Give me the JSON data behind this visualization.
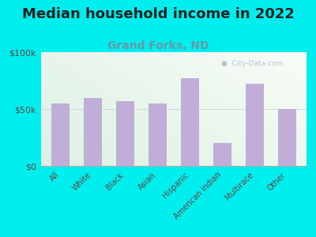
{
  "title": "Median household income in 2022",
  "subtitle": "Grand Forks, ND",
  "categories": [
    "All",
    "White",
    "Black",
    "Asian",
    "Hispanic",
    "American Indian",
    "Multirace",
    "Other"
  ],
  "values": [
    55000,
    60000,
    57000,
    55000,
    77000,
    20000,
    72000,
    50000
  ],
  "bar_color": "#c0aed8",
  "background_color": "#00eeee",
  "ylim": [
    0,
    100000
  ],
  "yticks": [
    0,
    50000,
    100000
  ],
  "ytick_labels": [
    "$0",
    "$50k",
    "$100k"
  ],
  "title_fontsize": 13,
  "subtitle_fontsize": 10,
  "title_color": "#222222",
  "subtitle_color": "#6699aa",
  "tick_label_color": "#664444",
  "watermark_text": "  City-Data.com",
  "watermark_color": "#aabbcc",
  "plot_bg_colors": [
    "#d8edcc",
    "#f4f8f0",
    "#f8faff"
  ],
  "grid_color": "#cccccc",
  "spine_color": "#aaaaaa"
}
